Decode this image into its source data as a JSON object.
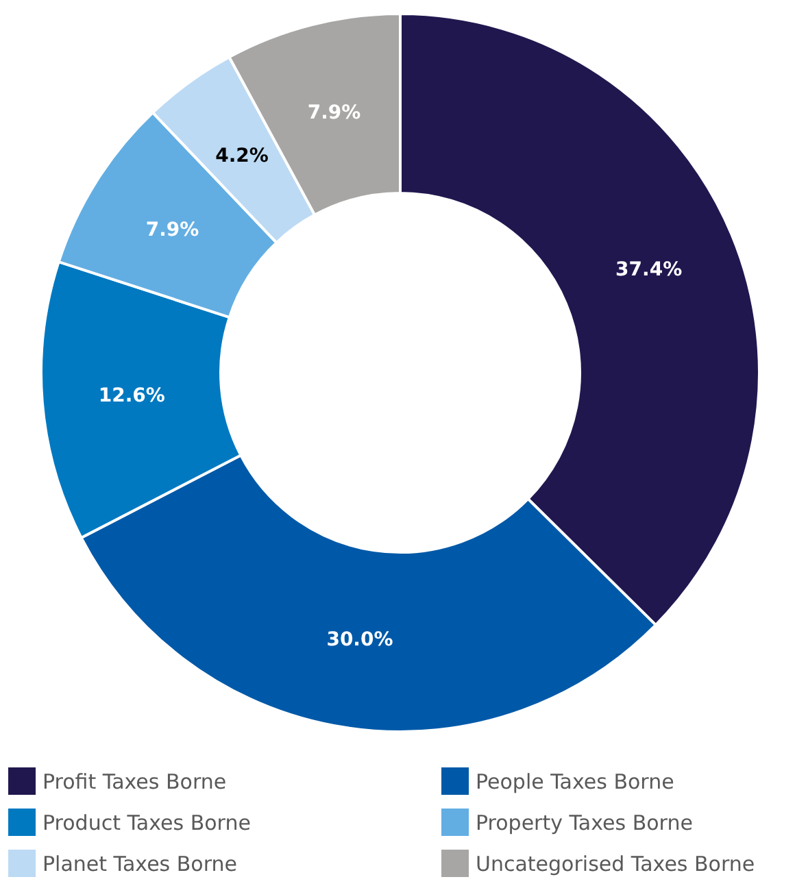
{
  "chart_data": {
    "type": "donut",
    "categories": [
      "Profit Taxes Borne",
      "People Taxes Borne",
      "Product Taxes Borne",
      "Property Taxes Borne",
      "Planet Taxes Borne",
      "Uncategorised Taxes Borne"
    ],
    "values": [
      37.4,
      30.0,
      12.6,
      7.9,
      4.2,
      7.9
    ],
    "value_labels": [
      "37.4%",
      "30.0%",
      "12.6%",
      "7.9%",
      "4.2%",
      "7.9%"
    ],
    "colors": [
      "#21174f",
      "#0059a8",
      "#0079c1",
      "#62aee3",
      "#bcdaf4",
      "#a8a6a4"
    ],
    "legend": "bottom"
  }
}
